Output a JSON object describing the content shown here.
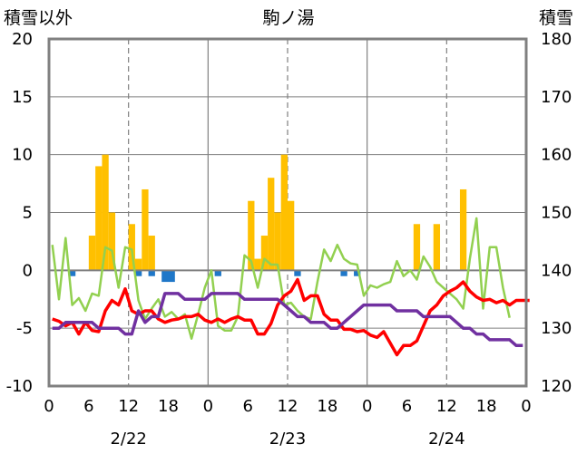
{
  "chart_data": {
    "type": "bar",
    "title": "駒ノ湯",
    "ylabel": "積雪以外",
    "y2label": "積雪",
    "ylim": [
      -10,
      20
    ],
    "y2lim": [
      120,
      180
    ],
    "yticks": [
      20,
      15,
      10,
      5,
      0,
      -5,
      -10
    ],
    "y2ticks": [
      180,
      170,
      160,
      150,
      140,
      130,
      120
    ],
    "xlim": [
      0,
      72
    ],
    "xticks": [
      {
        "x": 0,
        "label": "0"
      },
      {
        "x": 6,
        "label": "6"
      },
      {
        "x": 12,
        "label": "12"
      },
      {
        "x": 18,
        "label": "18"
      },
      {
        "x": 24,
        "label": "0"
      },
      {
        "x": 30,
        "label": "6"
      },
      {
        "x": 36,
        "label": "12"
      },
      {
        "x": 42,
        "label": "18"
      },
      {
        "x": 48,
        "label": "0"
      },
      {
        "x": 54,
        "label": "6"
      },
      {
        "x": 60,
        "label": "12"
      },
      {
        "x": 66,
        "label": "18"
      },
      {
        "x": 72,
        "label": "0"
      }
    ],
    "day_labels": [
      {
        "x": 12,
        "label": "2/22"
      },
      {
        "x": 36,
        "label": "2/23"
      },
      {
        "x": 60,
        "label": "2/24"
      }
    ],
    "day_boundaries": [
      24,
      48
    ],
    "dashed_gridlines": [
      12,
      36,
      60
    ],
    "grid": true,
    "colors": {
      "precip_bar": "#ffc000",
      "snowfall_bar": "#1f77c8",
      "temperature": "#ff0000",
      "wind": "#92d050",
      "snow_depth": "#7030a0",
      "axis": "#808080",
      "gridline": "#808080"
    },
    "series": [
      {
        "type": "bar",
        "color": "#ffc000",
        "x": [
          6,
          7,
          8,
          9,
          10,
          12,
          13,
          14,
          15,
          30,
          31,
          32,
          33,
          34,
          35,
          36,
          37,
          38,
          39,
          55,
          58,
          62
        ],
        "values": [
          3,
          9,
          10,
          5,
          0,
          4,
          1,
          7,
          3,
          6,
          1,
          3,
          8,
          5,
          10,
          6,
          0,
          0,
          0,
          4,
          4,
          7
        ]
      },
      {
        "type": "bar",
        "color": "#1f77c8",
        "x": [
          3,
          13,
          15,
          17,
          18,
          25,
          37,
          44,
          46
        ],
        "values": [
          -0.5,
          -0.5,
          -0.5,
          -1,
          -1,
          -0.5,
          -0.5,
          -0.5,
          -0.5
        ]
      },
      {
        "type": "line",
        "color": "#92d050",
        "values": [
          2.2,
          -2.5,
          2.8,
          -3,
          -2.4,
          -3.5,
          -2,
          -2.2,
          2,
          1.7,
          -1.5,
          2,
          1.8,
          -2.6,
          -4.2,
          -3.3,
          -2.5,
          -4,
          -3.6,
          -4.2,
          -3.8,
          -5.9,
          -3.8,
          -1.5,
          0,
          -4.8,
          -5.2,
          -5.2,
          -4,
          1.3,
          0.8,
          -1.5,
          1,
          0.5,
          0.5,
          -3,
          -2.8,
          -3.5,
          -4,
          -4.2,
          -1,
          1.8,
          0.8,
          2.2,
          1,
          0.6,
          0.5,
          -2.2,
          -1.3,
          -1.5,
          -1.2,
          -1,
          0.8,
          -0.5,
          0,
          -0.8,
          1.2,
          0.3,
          -1,
          -1.5,
          -2,
          -2.5,
          -3.3,
          1,
          4.5,
          -3.3,
          2,
          2,
          -1.5,
          -4.1
        ]
      },
      {
        "type": "line",
        "color": "#ff0000",
        "values": [
          -4.2,
          -4.4,
          -4.8,
          -4.5,
          -5.5,
          -4.5,
          -5.2,
          -5.3,
          -3.5,
          -2.6,
          -3,
          -1.6,
          -3.5,
          -3.8,
          -3.5,
          -3.5,
          -4.2,
          -4.5,
          -4.3,
          -4.2,
          -4,
          -4,
          -3.8,
          -4.3,
          -4.5,
          -4.2,
          -4.5,
          -4.2,
          -4,
          -4.3,
          -4.3,
          -5.5,
          -5.5,
          -4.6,
          -3,
          -2.2,
          -1.8,
          -0.8,
          -2.6,
          -2.2,
          -2.2,
          -3.8,
          -4.3,
          -4.3,
          -5.1,
          -5.1,
          -5.3,
          -5.2,
          -5.6,
          -5.8,
          -5.3,
          -6.3,
          -7.3,
          -6.5,
          -6.5,
          -6.1,
          -4.8,
          -3.5,
          -3,
          -2.2,
          -1.8,
          -1.5,
          -1,
          -1.8,
          -2.3,
          -2.6,
          -2.5,
          -2.8,
          -2.6,
          -3,
          -2.6,
          -2.6,
          -2.6
        ]
      },
      {
        "type": "line",
        "color": "#7030a0",
        "axis": "right",
        "values": [
          130,
          130,
          131,
          131,
          131,
          131,
          131,
          130,
          130,
          130,
          130,
          129,
          129,
          133,
          131,
          132,
          132,
          136,
          136,
          136,
          135,
          135,
          135,
          135,
          136,
          136,
          136,
          136,
          136,
          135,
          135,
          135,
          135,
          135,
          135,
          134,
          133,
          132,
          132,
          131,
          131,
          131,
          130,
          130,
          131,
          132,
          133,
          134,
          134,
          134,
          134,
          134,
          133,
          133,
          133,
          133,
          132,
          132,
          132,
          132,
          132,
          131,
          130,
          130,
          129,
          129,
          128,
          128,
          128,
          128,
          127,
          127
        ]
      }
    ]
  }
}
